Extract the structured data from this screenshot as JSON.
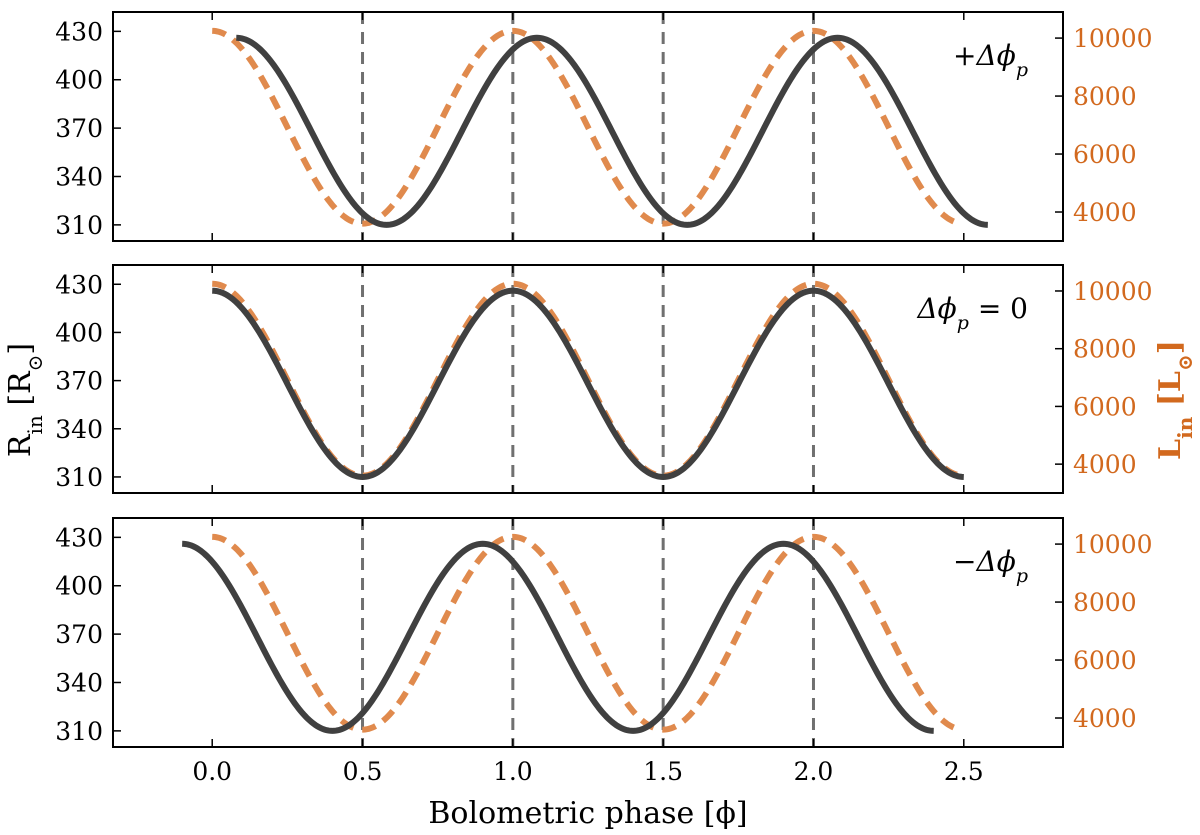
{
  "chart_data": {
    "type": "line",
    "xlabel": "Bolometric phase [ϕ]",
    "ylabel_left": "R",
    "ylabel_left_sub": "in",
    "ylabel_left_unit": " [R",
    "ylabel_left_unit_sub": "⊙",
    "ylabel_left_unit_close": "]",
    "ylabel_right": "L",
    "ylabel_right_sub": "in",
    "ylabel_right_unit": " [L",
    "ylabel_right_unit_sub": "⊙",
    "ylabel_right_unit_close": "]",
    "xlim": [
      -0.33,
      2.83
    ],
    "xticks": [
      0.0,
      0.5,
      1.0,
      1.5,
      2.0,
      2.5
    ],
    "xtick_labels": [
      "0.0",
      "0.5",
      "1.0",
      "1.5",
      "2.0",
      "2.5"
    ],
    "ylim_left": [
      300,
      442
    ],
    "yticks_left": [
      310,
      340,
      370,
      400,
      430
    ],
    "ylim_right": [
      3000,
      10900
    ],
    "yticks_right": [
      4000,
      6000,
      8000,
      10000
    ],
    "reference_lines_x": [
      0.5,
      1.0,
      1.5,
      2.0
    ],
    "colors": {
      "radius": "#404040",
      "luminosity": "#e08a4d",
      "right_axis": "#d2691e",
      "ref_line": "#707070"
    },
    "series_model": {
      "radius": {
        "period": 1.0,
        "min": 310,
        "max": 426,
        "x_range": [
          0.08,
          2.58
        ]
      },
      "luminosity": {
        "period": 1.0,
        "min": 3600,
        "max": 10250,
        "x_range": [
          0.0,
          2.48
        ],
        "phase_of_max": 0.0
      }
    },
    "panels": [
      {
        "label": "+Δϕ",
        "label_sub": "p",
        "label_suffix": "",
        "radius_phase_of_max": 0.08,
        "radius_x_range": [
          0.08,
          2.58
        ]
      },
      {
        "label": "Δϕ",
        "label_sub": "p",
        "label_suffix": " = 0",
        "radius_phase_of_max": 0.0,
        "radius_x_range": [
          0.0,
          2.5
        ]
      },
      {
        "label": "−Δϕ",
        "label_sub": "p",
        "label_suffix": "",
        "radius_phase_of_max": -0.1,
        "radius_x_range": [
          -0.1,
          2.4
        ]
      }
    ]
  }
}
